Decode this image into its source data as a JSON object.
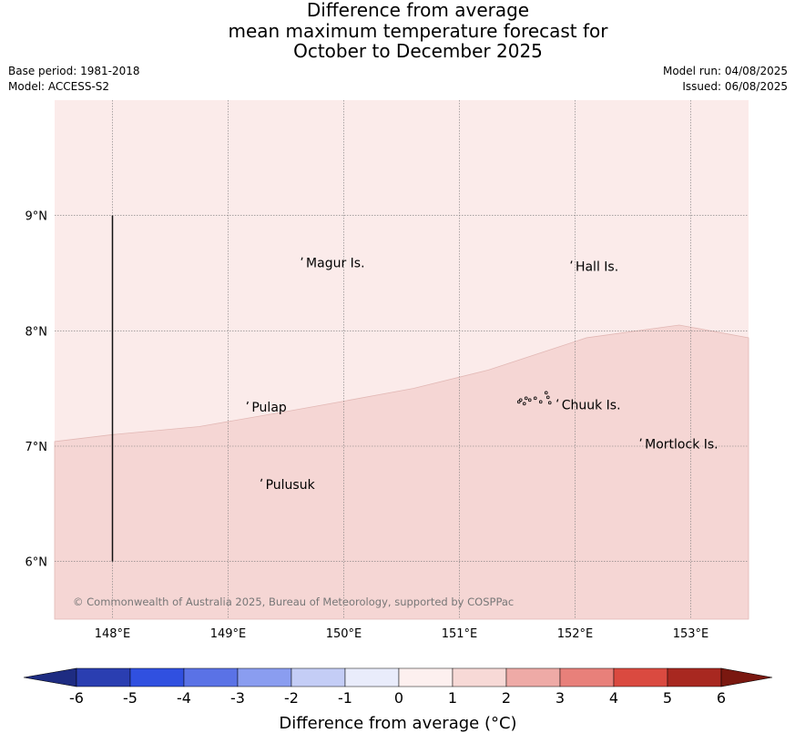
{
  "title": {
    "line1": "Difference from average",
    "line2": "mean maximum temperature forecast for",
    "line3": "October to December 2025"
  },
  "meta": {
    "base_period": "Base period: 1981-2018",
    "model": "Model: ACCESS-S2",
    "model_run": "Model run: 04/08/2025",
    "issued": "Issued: 06/08/2025"
  },
  "map": {
    "lon_range": [
      147.5,
      153.5
    ],
    "lat_range": [
      5.5,
      10.0
    ],
    "lon_ticks": [
      {
        "value": 148,
        "label": "148°E"
      },
      {
        "value": 149,
        "label": "149°E"
      },
      {
        "value": 150,
        "label": "150°E"
      },
      {
        "value": 151,
        "label": "151°E"
      },
      {
        "value": 152,
        "label": "152°E"
      },
      {
        "value": 153,
        "label": "153°E"
      }
    ],
    "lat_ticks": [
      {
        "value": 9,
        "label": "9°N"
      },
      {
        "value": 8,
        "label": "8°N"
      },
      {
        "value": 7,
        "label": "7°N"
      },
      {
        "value": 6,
        "label": "6°N"
      }
    ],
    "grid": true,
    "field_colors": {
      "light": "#fbebea",
      "warmer": "#f5d6d4"
    },
    "boundary": [
      [
        147.5,
        7.04
      ],
      [
        148.0,
        7.1
      ],
      [
        148.75,
        7.17
      ],
      [
        149.5,
        7.3
      ],
      [
        150.0,
        7.39
      ],
      [
        150.6,
        7.5
      ],
      [
        151.25,
        7.66
      ],
      [
        152.1,
        7.94
      ],
      [
        152.9,
        8.05
      ],
      [
        153.5,
        7.94
      ]
    ],
    "vertical_line": {
      "lon": 148,
      "lat_from": 6,
      "lat_to": 9
    },
    "places": [
      {
        "name": "Magur Is.",
        "lon": 149.65,
        "lat": 8.55
      },
      {
        "name": "Hall Is.",
        "lon": 151.98,
        "lat": 8.52
      },
      {
        "name": "Pulap",
        "lon": 149.18,
        "lat": 7.3
      },
      {
        "name": "Chuuk Is.",
        "lon": 151.86,
        "lat": 7.32
      },
      {
        "name": "Mortlock Is.",
        "lon": 152.58,
        "lat": 6.98
      },
      {
        "name": "Pulusuk",
        "lon": 149.3,
        "lat": 6.63
      }
    ],
    "copyright": "© Commonwealth of Australia 2025, Bureau of Meteorology, supported by COSPPac"
  },
  "colorbar": {
    "label": "Difference from average (°C)",
    "ticks": [
      "-6",
      "-5",
      "-4",
      "-3",
      "-2",
      "-1",
      "0",
      "1",
      "2",
      "3",
      "4",
      "5",
      "6"
    ],
    "colors": [
      "#2a3eb1",
      "#3050e0",
      "#5a72e6",
      "#8a9df0",
      "#c4cdf6",
      "#e9ecfb",
      "#fdf0ef",
      "#f7d9d6",
      "#eeaaa6",
      "#e8807a",
      "#da4a40",
      "#a82820"
    ],
    "below_color": "#1e2c82",
    "above_color": "#7a1810"
  }
}
